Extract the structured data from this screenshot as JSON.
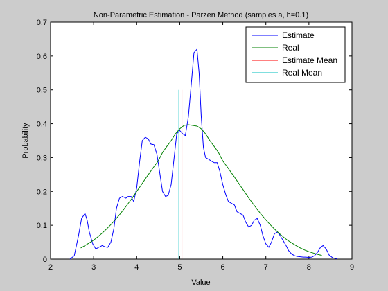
{
  "chart_data": {
    "type": "line",
    "title": "Non-Parametric Estimation - Parzen Method (samples a, h=0.1)",
    "xlabel": "Value",
    "ylabel": "Probability",
    "xlim": [
      2,
      9
    ],
    "ylim": [
      0,
      0.7
    ],
    "xticks": [
      2,
      3,
      4,
      5,
      6,
      7,
      8,
      9
    ],
    "yticks": [
      0,
      0.1,
      0.2,
      0.3,
      0.4,
      0.5,
      0.6,
      0.7
    ],
    "grid": false,
    "legend": {
      "placement": "top-right"
    },
    "series": [
      {
        "name": "Estimate",
        "color": "#0000ff",
        "kind": "line",
        "x": [
          2.45,
          2.55,
          2.65,
          2.72,
          2.8,
          2.85,
          2.9,
          2.98,
          3.05,
          3.12,
          3.2,
          3.27,
          3.33,
          3.4,
          3.47,
          3.53,
          3.6,
          3.67,
          3.75,
          3.8,
          3.87,
          3.93,
          4.0,
          4.07,
          4.13,
          4.2,
          4.27,
          4.33,
          4.4,
          4.47,
          4.53,
          4.6,
          4.67,
          4.73,
          4.8,
          4.87,
          4.93,
          5.0,
          5.07,
          5.13,
          5.2,
          5.27,
          5.33,
          5.4,
          5.45,
          5.5,
          5.55,
          5.6,
          5.67,
          5.73,
          5.8,
          5.87,
          5.93,
          6.0,
          6.07,
          6.13,
          6.2,
          6.27,
          6.33,
          6.4,
          6.47,
          6.53,
          6.6,
          6.67,
          6.73,
          6.8,
          6.87,
          6.93,
          7.0,
          7.07,
          7.13,
          7.2,
          7.27,
          7.33,
          7.4,
          7.47,
          7.53,
          7.6,
          7.67,
          7.73,
          7.8,
          7.87,
          7.93,
          8.0,
          8.07,
          8.13,
          8.2,
          8.27,
          8.33,
          8.4,
          8.47,
          8.55,
          8.65
        ],
        "y": [
          0.0,
          0.01,
          0.07,
          0.12,
          0.135,
          0.115,
          0.08,
          0.045,
          0.03,
          0.035,
          0.04,
          0.036,
          0.035,
          0.05,
          0.09,
          0.15,
          0.18,
          0.185,
          0.18,
          0.185,
          0.185,
          0.17,
          0.21,
          0.29,
          0.35,
          0.36,
          0.355,
          0.34,
          0.338,
          0.31,
          0.26,
          0.2,
          0.185,
          0.188,
          0.22,
          0.3,
          0.37,
          0.38,
          0.37,
          0.365,
          0.42,
          0.52,
          0.61,
          0.62,
          0.55,
          0.42,
          0.33,
          0.3,
          0.295,
          0.29,
          0.285,
          0.285,
          0.26,
          0.22,
          0.19,
          0.17,
          0.165,
          0.16,
          0.14,
          0.135,
          0.13,
          0.11,
          0.095,
          0.1,
          0.115,
          0.12,
          0.1,
          0.07,
          0.045,
          0.035,
          0.05,
          0.075,
          0.08,
          0.07,
          0.055,
          0.04,
          0.025,
          0.015,
          0.01,
          0.008,
          0.007,
          0.006,
          0.006,
          0.005,
          0.006,
          0.01,
          0.02,
          0.035,
          0.04,
          0.03,
          0.012,
          0.004,
          0.001
        ]
      },
      {
        "name": "Real",
        "color": "#008000",
        "kind": "line",
        "x": [
          2.7,
          2.8,
          2.9,
          3.0,
          3.1,
          3.2,
          3.3,
          3.4,
          3.5,
          3.6,
          3.7,
          3.8,
          3.9,
          4.0,
          4.1,
          4.2,
          4.3,
          4.4,
          4.5,
          4.6,
          4.7,
          4.8,
          4.9,
          5.0,
          5.1,
          5.2,
          5.3,
          5.4,
          5.5,
          5.6,
          5.7,
          5.8,
          5.9,
          6.0,
          6.1,
          6.2,
          6.3,
          6.4,
          6.5,
          6.6,
          6.7,
          6.8,
          6.9,
          7.0,
          7.1,
          7.2,
          7.3,
          7.4,
          7.5,
          7.6,
          7.7,
          7.8,
          7.9,
          8.0,
          8.1,
          8.2,
          8.3
        ],
        "y": [
          0.033,
          0.04,
          0.048,
          0.056,
          0.066,
          0.077,
          0.089,
          0.102,
          0.116,
          0.131,
          0.147,
          0.164,
          0.181,
          0.2,
          0.218,
          0.237,
          0.255,
          0.273,
          0.29,
          0.315,
          0.333,
          0.35,
          0.37,
          0.385,
          0.395,
          0.397,
          0.395,
          0.393,
          0.385,
          0.37,
          0.35,
          0.333,
          0.315,
          0.29,
          0.273,
          0.255,
          0.237,
          0.218,
          0.2,
          0.181,
          0.164,
          0.147,
          0.131,
          0.116,
          0.102,
          0.089,
          0.077,
          0.066,
          0.056,
          0.048,
          0.04,
          0.033,
          0.027,
          0.022,
          0.018,
          0.014,
          0.011
        ]
      },
      {
        "name": "Estimate Mean",
        "color": "#ff0000",
        "kind": "vline",
        "x": [
          5.05,
          5.05
        ],
        "y": [
          0,
          0.5
        ]
      },
      {
        "name": "Real Mean",
        "color": "#00bfbf",
        "kind": "vline",
        "x": [
          4.98,
          4.98
        ],
        "y": [
          0,
          0.5
        ]
      }
    ]
  }
}
